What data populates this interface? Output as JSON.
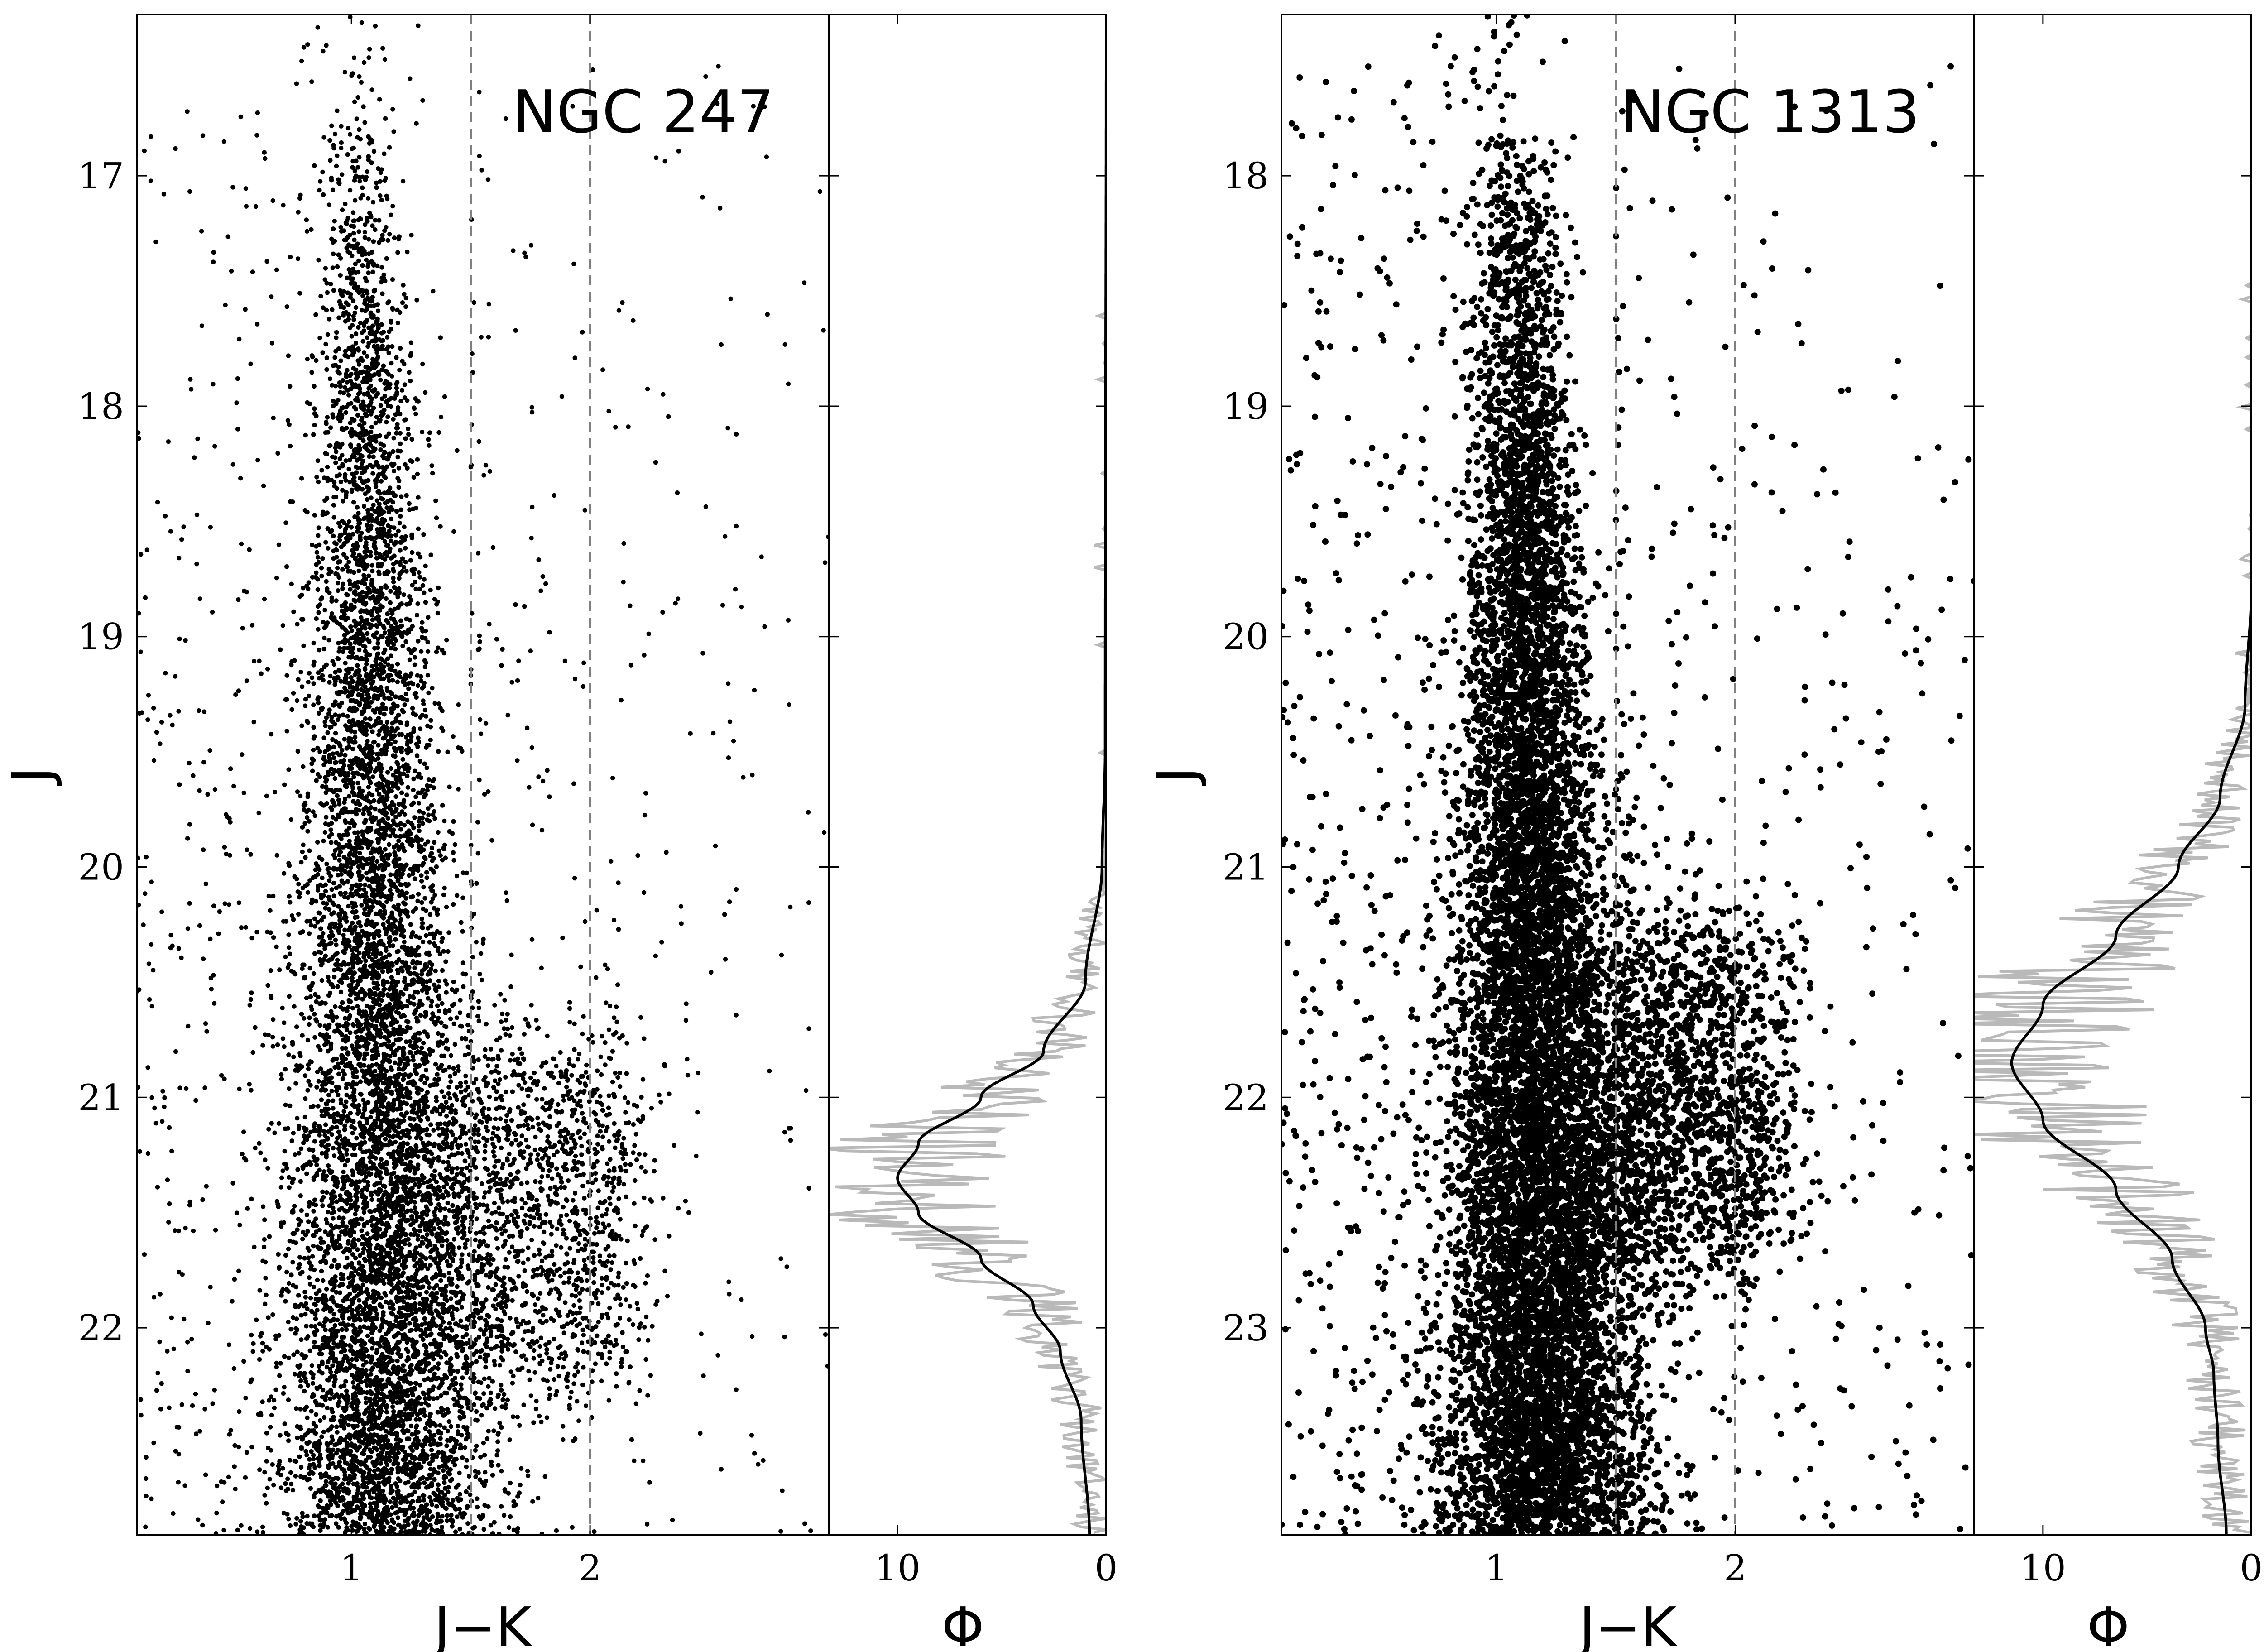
{
  "chart_data": [
    {
      "type": "scatter",
      "title": "NGC 247",
      "xlabel": "J−K",
      "ylabel": "J",
      "xlim": [
        0.1,
        3.0
      ],
      "ylim": [
        22.9,
        16.3
      ],
      "y_inverted": true,
      "x_ticks": [
        "1",
        "2"
      ],
      "y_ticks": [
        "17",
        "18",
        "19",
        "20",
        "21",
        "22"
      ],
      "color_cuts": [
        1.5,
        2.0
      ],
      "grid": false,
      "series": [
        {
          "description_of_distribution": "RGB plume centered at J-K~1.05, broad; bright tail to J~16.4; AGB plume at J-K~1.3-2.1, J~20.5-22.0",
          "sample_points": [
            {
              "x": 1.1,
              "y": 16.35
            },
            {
              "x": 0.77,
              "y": 16.6
            },
            {
              "x": 1.05,
              "y": 16.7
            },
            {
              "x": 1.15,
              "y": 17.1
            },
            {
              "x": 1.05,
              "y": 17.5
            },
            {
              "x": 1.05,
              "y": 18.0
            },
            {
              "x": 1.1,
              "y": 18.5
            },
            {
              "x": 1.05,
              "y": 19.0
            },
            {
              "x": 1.05,
              "y": 19.5
            },
            {
              "x": 1.1,
              "y": 20.0
            },
            {
              "x": 1.15,
              "y": 20.5
            },
            {
              "x": 1.2,
              "y": 21.0
            },
            {
              "x": 1.15,
              "y": 21.5
            },
            {
              "x": 1.1,
              "y": 22.0
            },
            {
              "x": 1.05,
              "y": 22.5
            },
            {
              "x": 1.6,
              "y": 21.3
            },
            {
              "x": 1.8,
              "y": 21.4
            },
            {
              "x": 2.0,
              "y": 21.2
            },
            {
              "x": 2.4,
              "y": 21.45
            },
            {
              "x": 2.2,
              "y": 19.95
            },
            {
              "x": 2.8,
              "y": 21.7
            },
            {
              "x": 2.9,
              "y": 22.85
            }
          ]
        }
      ]
    },
    {
      "type": "line",
      "xlabel": "Φ",
      "ylabel": "",
      "xlim": [
        13.3,
        0
      ],
      "ylim": [
        22.9,
        16.3
      ],
      "x_ticks": [
        "10",
        "0"
      ],
      "series": [
        {
          "name": "",
          "style": "smooth",
          "peak_J": 21.35,
          "peak_phi": 10.0,
          "points": [
            {
              "J": 16.3,
              "phi": 0.0
            },
            {
              "J": 19.5,
              "phi": 0.05
            },
            {
              "J": 20.0,
              "phi": 0.2
            },
            {
              "J": 20.5,
              "phi": 1.0
            },
            {
              "J": 20.8,
              "phi": 3.0
            },
            {
              "J": 21.0,
              "phi": 6.0
            },
            {
              "J": 21.2,
              "phi": 9.0
            },
            {
              "J": 21.35,
              "phi": 10.0
            },
            {
              "J": 21.5,
              "phi": 9.0
            },
            {
              "J": 21.7,
              "phi": 6.0
            },
            {
              "J": 21.9,
              "phi": 3.5
            },
            {
              "J": 22.1,
              "phi": 2.2
            },
            {
              "J": 22.4,
              "phi": 1.2
            },
            {
              "J": 22.9,
              "phi": 0.8
            }
          ]
        },
        {
          "name": "",
          "style": "noisy-raw",
          "color": "#b9b9b9"
        }
      ]
    },
    {
      "type": "scatter",
      "title": "NGC 1313",
      "xlabel": "J−K",
      "ylabel": "J",
      "xlim": [
        0.1,
        3.0
      ],
      "ylim": [
        23.9,
        17.3
      ],
      "y_inverted": true,
      "x_ticks": [
        "1",
        "2"
      ],
      "y_ticks": [
        "18",
        "19",
        "20",
        "21",
        "22",
        "23"
      ],
      "color_cuts": [
        1.5,
        2.0
      ],
      "grid": false,
      "series": [
        {
          "description_of_distribution": "Dense RGB centered at J-K~1.1, J~18-23.9; bright tail to J~17.4; AGB extension J-K~1.3-2.5 at J~21-22.5",
          "sample_points": [
            {
              "x": 0.92,
              "y": 17.45
            },
            {
              "x": 0.9,
              "y": 17.55
            },
            {
              "x": 0.8,
              "y": 17.7
            },
            {
              "x": 1.1,
              "y": 18.0
            },
            {
              "x": 1.1,
              "y": 18.5
            },
            {
              "x": 1.1,
              "y": 19.0
            },
            {
              "x": 1.1,
              "y": 19.5
            },
            {
              "x": 1.1,
              "y": 20.0
            },
            {
              "x": 1.15,
              "y": 20.5
            },
            {
              "x": 1.2,
              "y": 21.0
            },
            {
              "x": 1.2,
              "y": 21.5
            },
            {
              "x": 1.2,
              "y": 22.0
            },
            {
              "x": 1.15,
              "y": 22.5
            },
            {
              "x": 1.15,
              "y": 23.0
            },
            {
              "x": 1.2,
              "y": 23.5
            },
            {
              "x": 1.6,
              "y": 21.2
            },
            {
              "x": 1.9,
              "y": 21.6
            },
            {
              "x": 2.2,
              "y": 21.9
            },
            {
              "x": 2.45,
              "y": 19.9
            },
            {
              "x": 2.9,
              "y": 19.75
            },
            {
              "x": 2.6,
              "y": 20.5
            },
            {
              "x": 2.75,
              "y": 22.5
            }
          ]
        }
      ]
    },
    {
      "type": "line",
      "xlabel": "Φ",
      "ylabel": "",
      "xlim": [
        13.3,
        0
      ],
      "ylim": [
        23.9,
        17.3
      ],
      "x_ticks": [
        "10",
        "0"
      ],
      "series": [
        {
          "name": "",
          "style": "smooth",
          "peak_J": 21.85,
          "peak_phi": 11.5,
          "points": [
            {
              "J": 17.3,
              "phi": 0.0
            },
            {
              "J": 19.8,
              "phi": 0.0
            },
            {
              "J": 20.3,
              "phi": 0.3
            },
            {
              "J": 20.7,
              "phi": 1.5
            },
            {
              "J": 21.0,
              "phi": 3.5
            },
            {
              "J": 21.3,
              "phi": 6.5
            },
            {
              "J": 21.6,
              "phi": 10.0
            },
            {
              "J": 21.85,
              "phi": 11.5
            },
            {
              "J": 22.1,
              "phi": 10.0
            },
            {
              "J": 22.4,
              "phi": 6.5
            },
            {
              "J": 22.7,
              "phi": 3.8
            },
            {
              "J": 23.0,
              "phi": 2.2
            },
            {
              "J": 23.2,
              "phi": 1.8
            },
            {
              "J": 23.5,
              "phi": 1.6
            },
            {
              "J": 23.9,
              "phi": 1.2
            }
          ]
        },
        {
          "name": "",
          "style": "noisy-raw",
          "color": "#b9b9b9"
        }
      ]
    }
  ]
}
